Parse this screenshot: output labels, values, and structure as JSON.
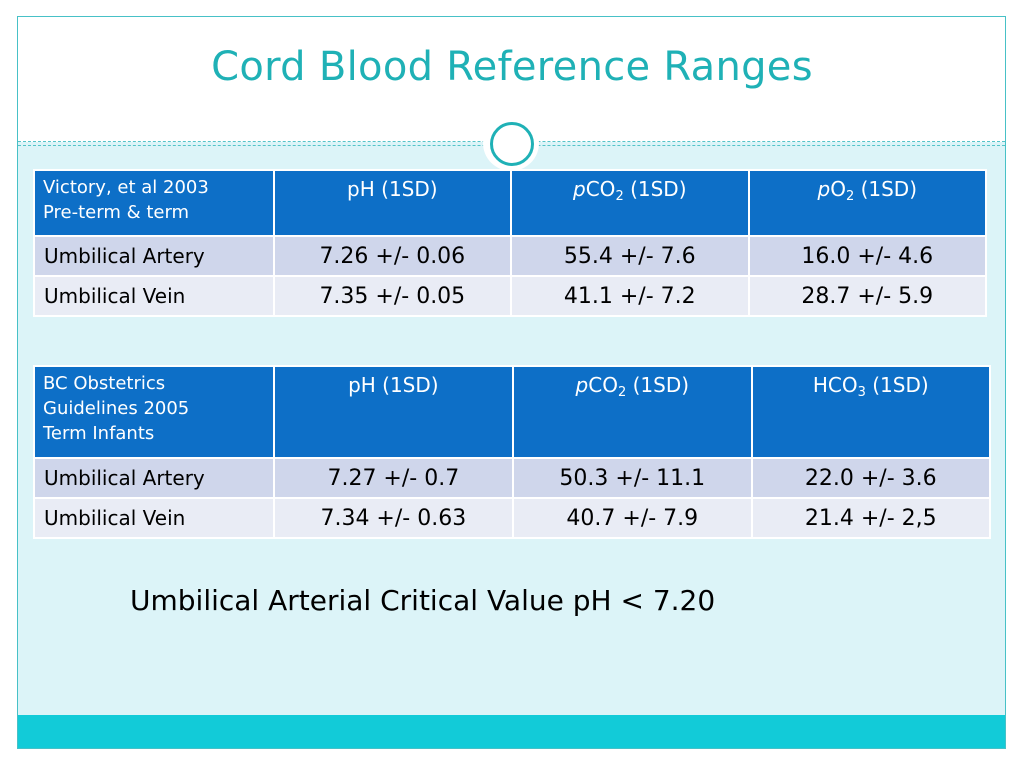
{
  "slide": {
    "title": "Cord Blood Reference Ranges",
    "critical_note": "Umbilical Arterial Critical Value pH < 7.20"
  },
  "table1": {
    "source": [
      "Victory, et al 2003",
      "Pre-term & term"
    ],
    "columns": [
      {
        "prefix": "",
        "main": "pH",
        "sub": "",
        "suffix": " (1SD)"
      },
      {
        "prefix": "p",
        "main": "CO",
        "sub": "2",
        "suffix": " (1SD)"
      },
      {
        "prefix": "p",
        "main": "O",
        "sub": "2",
        "suffix": " (1SD)"
      }
    ],
    "rows": [
      {
        "label": "Umbilical Artery",
        "values": [
          "7.26 +/- 0.06",
          "55.4 +/- 7.6",
          "16.0 +/- 4.6"
        ]
      },
      {
        "label": "Umbilical Vein",
        "values": [
          "7.35 +/- 0.05",
          "41.1 +/- 7.2",
          "28.7 +/- 5.9"
        ]
      }
    ]
  },
  "table2": {
    "source": [
      "BC Obstetrics",
      "Guidelines 2005",
      "Term Infants"
    ],
    "columns": [
      {
        "prefix": "",
        "main": "pH",
        "sub": "",
        "suffix": " (1SD)"
      },
      {
        "prefix": "p",
        "main": "CO",
        "sub": "2",
        "suffix": " (1SD)"
      },
      {
        "prefix": "",
        "main": "HCO",
        "sub": "3",
        "suffix": " (1SD)"
      }
    ],
    "rows": [
      {
        "label": "Umbilical Artery",
        "values": [
          "7.27 +/- 0.7",
          "50.3 +/- 11.1",
          "22.0 +/- 3.6"
        ]
      },
      {
        "label": "Umbilical Vein",
        "values": [
          "7.34 +/- 0.63",
          "40.7 +/- 7.9",
          "21.4 +/- 2,5"
        ]
      }
    ]
  },
  "colors": {
    "accent": "#1fb1b6",
    "table_header": "#0d6fc7",
    "content_bg": "#dcf4f8",
    "bottom_band": "#12cbd8"
  }
}
